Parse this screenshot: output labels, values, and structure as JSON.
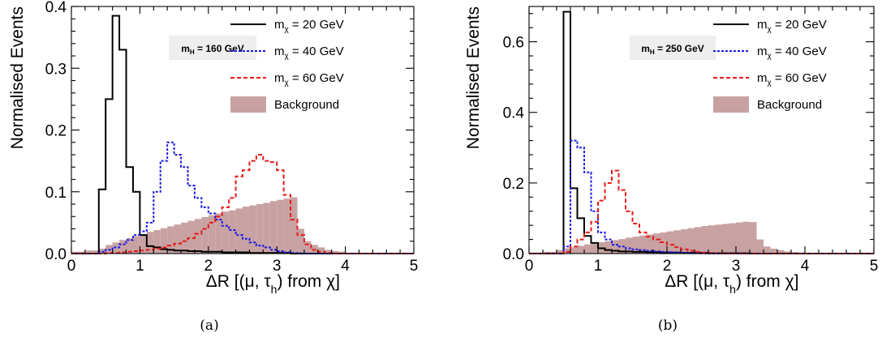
{
  "chart_data": [
    {
      "type": "histogram",
      "caption": "(a)",
      "ylabel": "Normalised Events",
      "xlabel_parts": [
        "ΔR [(μ, τ",
        "h",
        ") from χ]"
      ],
      "xlim": [
        0,
        5
      ],
      "ylim": [
        0,
        0.4
      ],
      "xticks": [
        "0",
        "1",
        "2",
        "3",
        "4",
        "5"
      ],
      "yticks": [
        "0.0",
        "0.1",
        "0.2",
        "0.3",
        "0.4"
      ],
      "mass_label": {
        "main": "m",
        "sub": "H",
        "rest": " = 160 GeV"
      },
      "bin_edges": [
        0,
        0.2,
        0.4,
        0.5,
        0.6,
        0.7,
        0.8,
        0.9,
        1.0,
        1.1,
        1.2,
        1.3,
        1.4,
        1.5,
        1.6,
        1.7,
        1.8,
        1.9,
        2.0,
        2.1,
        2.2,
        2.3,
        2.4,
        2.5,
        2.6,
        2.7,
        2.8,
        2.9,
        3.0,
        3.1,
        3.2,
        3.3,
        3.4,
        3.5,
        3.6,
        3.7,
        3.8,
        3.9,
        4.0,
        4.5,
        5.0
      ],
      "background": [
        0.003,
        0.005,
        0.008,
        0.014,
        0.018,
        0.022,
        0.025,
        0.028,
        0.031,
        0.035,
        0.038,
        0.041,
        0.044,
        0.047,
        0.05,
        0.053,
        0.056,
        0.059,
        0.062,
        0.065,
        0.068,
        0.07,
        0.073,
        0.076,
        0.078,
        0.08,
        0.082,
        0.085,
        0.087,
        0.089,
        0.091,
        0.04,
        0.02,
        0.014,
        0.01,
        0.006,
        0.004,
        0.003,
        0.001,
        0.0005
      ],
      "series": [
        {
          "name_parts": [
            "m",
            "χ",
            " = 20 GeV"
          ],
          "color": "#000000",
          "dash": "",
          "values": [
            0,
            0,
            0.104,
            0.25,
            0.385,
            0.33,
            0.14,
            0.1,
            0.03,
            0.012,
            0.01,
            0.007,
            0.006,
            0.005,
            0.005,
            0.004,
            0.004,
            0.003,
            0.003,
            0.003,
            0.002,
            0.002,
            0.002,
            0.002,
            0.001,
            0.001,
            0.001,
            0.001,
            0.001,
            0.001,
            0.0,
            0.0,
            0.0,
            0.0,
            0.0,
            0.0,
            0.0,
            0.0,
            0.0,
            0.0
          ]
        },
        {
          "name_parts": [
            "m",
            "χ",
            " = 40 GeV"
          ],
          "color": "#1a1ae6",
          "dash": "3,2",
          "values": [
            0,
            0,
            0.003,
            0.006,
            0.01,
            0.015,
            0.022,
            0.03,
            0.036,
            0.05,
            0.1,
            0.15,
            0.18,
            0.16,
            0.14,
            0.11,
            0.09,
            0.075,
            0.065,
            0.055,
            0.045,
            0.038,
            0.03,
            0.024,
            0.018,
            0.013,
            0.01,
            0.006,
            0.004,
            0.002,
            0.001,
            0.0005,
            0.0,
            0.0,
            0.0,
            0.0,
            0.0,
            0.0,
            0.0,
            0.0
          ]
        },
        {
          "name_parts": [
            "m",
            "χ",
            " = 60 GeV"
          ],
          "color": "#e61a1a",
          "dash": "5,3",
          "values": [
            0,
            0,
            0,
            0.001,
            0.001,
            0.002,
            0.003,
            0.004,
            0.005,
            0.006,
            0.008,
            0.01,
            0.013,
            0.016,
            0.02,
            0.025,
            0.032,
            0.04,
            0.05,
            0.06,
            0.075,
            0.09,
            0.125,
            0.135,
            0.15,
            0.16,
            0.15,
            0.148,
            0.135,
            0.095,
            0.055,
            0.03,
            0.015,
            0.006,
            0.003,
            0.001,
            0.0,
            0.0,
            0.0,
            0.0
          ]
        }
      ],
      "legend": {
        "background_label": "Background"
      }
    },
    {
      "type": "histogram",
      "caption": "(b)",
      "ylabel": "Normalised Events",
      "xlabel_parts": [
        "ΔR [(μ, τ",
        "h",
        ") from χ]"
      ],
      "xlim": [
        0,
        5
      ],
      "ylim": [
        0,
        0.7
      ],
      "xticks": [
        "0",
        "1",
        "2",
        "3",
        "4",
        "5"
      ],
      "yticks": [
        "0.0",
        "0.2",
        "0.4",
        "0.6"
      ],
      "mass_label": {
        "main": "m",
        "sub": "H",
        "rest": " = 250 GeV"
      },
      "bin_edges": [
        0,
        0.2,
        0.4,
        0.5,
        0.6,
        0.7,
        0.8,
        0.9,
        1.0,
        1.1,
        1.2,
        1.3,
        1.4,
        1.5,
        1.6,
        1.7,
        1.8,
        1.9,
        2.0,
        2.1,
        2.2,
        2.3,
        2.4,
        2.5,
        2.6,
        2.7,
        2.8,
        2.9,
        3.0,
        3.1,
        3.2,
        3.3,
        3.4,
        3.5,
        3.6,
        3.7,
        3.8,
        3.9,
        4.0,
        4.5,
        5.0
      ],
      "background": [
        0.003,
        0.005,
        0.01,
        0.015,
        0.018,
        0.022,
        0.026,
        0.029,
        0.032,
        0.035,
        0.038,
        0.041,
        0.045,
        0.048,
        0.051,
        0.054,
        0.057,
        0.06,
        0.063,
        0.066,
        0.069,
        0.072,
        0.075,
        0.078,
        0.08,
        0.082,
        0.084,
        0.086,
        0.088,
        0.09,
        0.089,
        0.04,
        0.02,
        0.014,
        0.01,
        0.006,
        0.004,
        0.003,
        0.001,
        0.0005
      ],
      "series": [
        {
          "name_parts": [
            "m",
            "χ",
            " = 20 GeV"
          ],
          "color": "#000000",
          "dash": "",
          "values": [
            0,
            0,
            0.0,
            0.685,
            0.185,
            0.1,
            0.05,
            0.03,
            0.015,
            0.01,
            0.008,
            0.006,
            0.006,
            0.005,
            0.005,
            0.004,
            0.004,
            0.003,
            0.003,
            0.003,
            0.002,
            0.002,
            0.002,
            0.002,
            0.001,
            0.001,
            0.001,
            0.001,
            0.001,
            0.001,
            0.0,
            0.0,
            0.0,
            0.0,
            0.0,
            0.0,
            0.0,
            0.0,
            0.0,
            0.0
          ]
        },
        {
          "name_parts": [
            "m",
            "χ",
            " = 40 GeV"
          ],
          "color": "#1a1ae6",
          "dash": "3,2",
          "values": [
            0,
            0,
            0.0,
            0.02,
            0.32,
            0.3,
            0.23,
            0.12,
            0.06,
            0.04,
            0.025,
            0.02,
            0.015,
            0.012,
            0.01,
            0.008,
            0.006,
            0.005,
            0.004,
            0.003,
            0.002,
            0.001,
            0.001,
            0.0005,
            0.0,
            0.0,
            0.0,
            0.0,
            0.0,
            0.0,
            0.0,
            0.0,
            0.0,
            0.0,
            0.0,
            0.0,
            0.0,
            0.0,
            0.0,
            0.0
          ]
        },
        {
          "name_parts": [
            "m",
            "χ",
            " = 60 GeV"
          ],
          "color": "#e61a1a",
          "dash": "5,3",
          "values": [
            0,
            0,
            0.0,
            0.005,
            0.02,
            0.04,
            0.06,
            0.09,
            0.15,
            0.2,
            0.235,
            0.18,
            0.12,
            0.085,
            0.06,
            0.048,
            0.04,
            0.032,
            0.025,
            0.018,
            0.012,
            0.008,
            0.005,
            0.003,
            0.002,
            0.001,
            0.0,
            0.0,
            0.0,
            0.0,
            0.0,
            0.0,
            0.0,
            0.0,
            0.0,
            0.0,
            0.0,
            0.0,
            0.0,
            0.0
          ]
        }
      ],
      "legend": {
        "background_label": "Background"
      }
    }
  ]
}
